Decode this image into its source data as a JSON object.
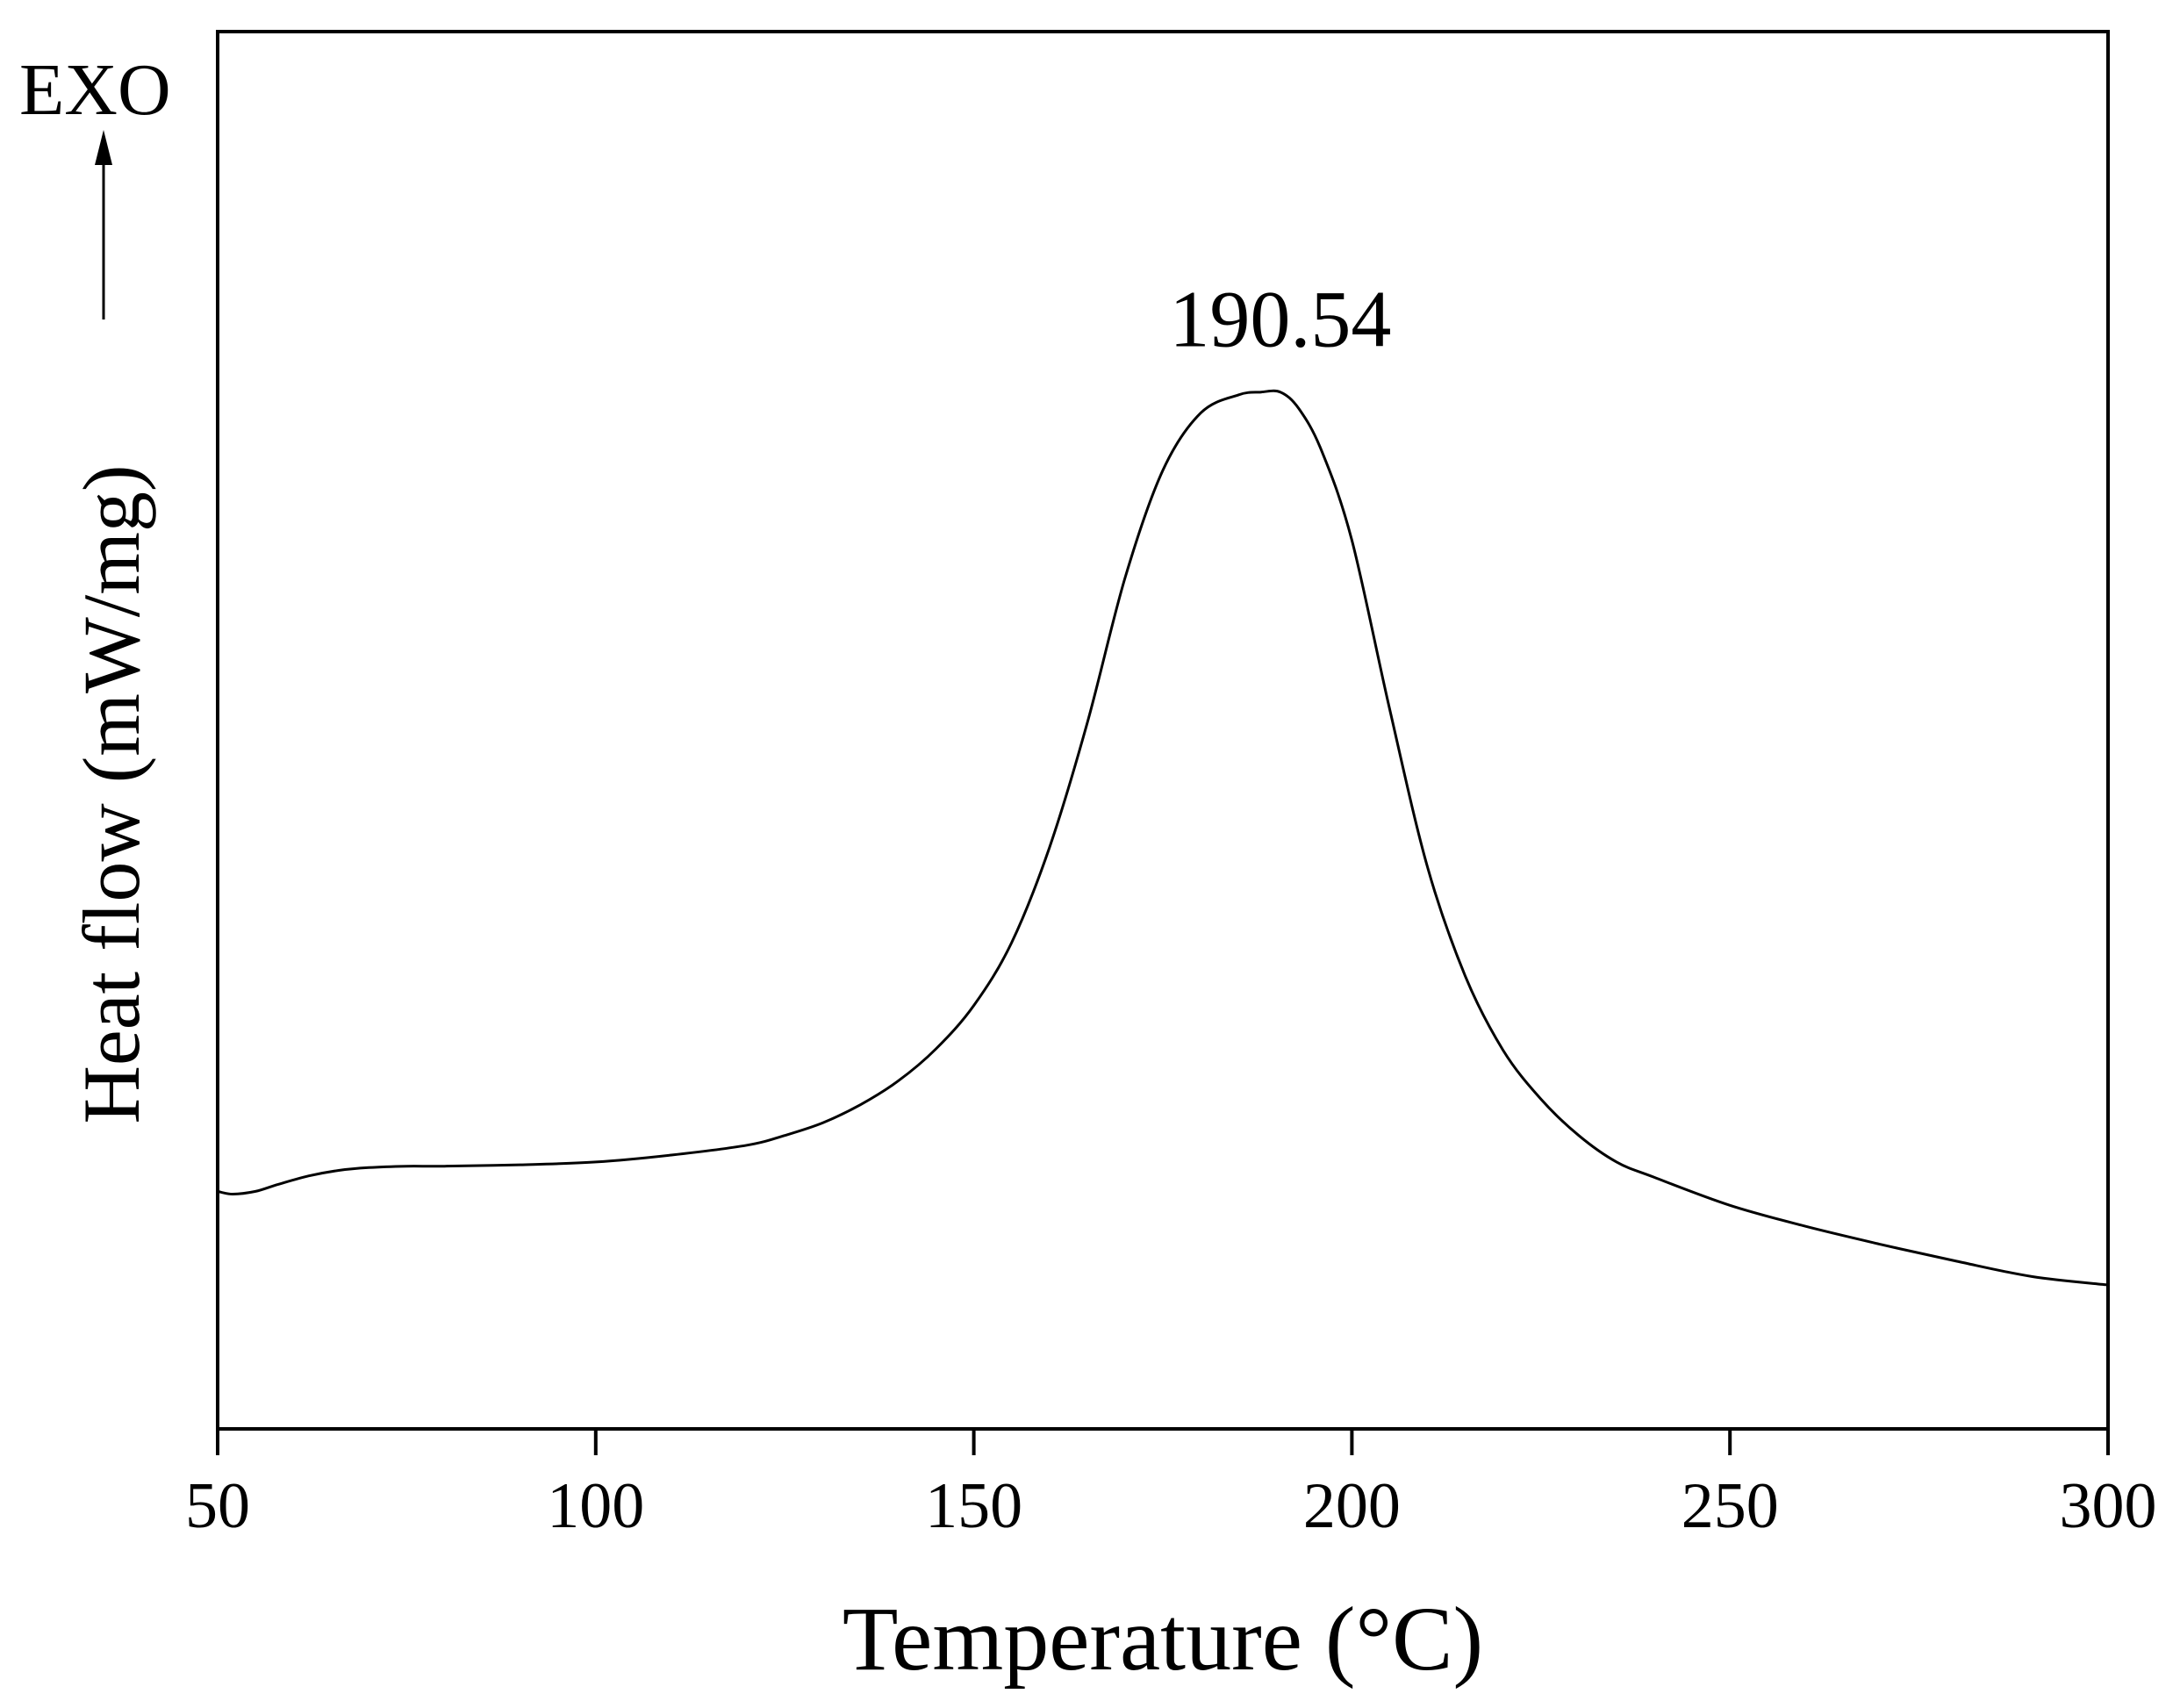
{
  "chart_data": {
    "type": "line",
    "xlabel": "Temperature (°C)",
    "ylabel": "Heat flow (mW/mg)",
    "exo_label": "EXO",
    "xlim": [
      50,
      300
    ],
    "ylim": [
      0,
      100
    ],
    "xticks": [
      50,
      100,
      150,
      200,
      250,
      300
    ],
    "xtick_labels": [
      "50",
      "100",
      "150",
      "200",
      "250",
      "300"
    ],
    "yticks_shown": false,
    "grid": false,
    "peak_annotation": {
      "x": 190.54,
      "y": 74.2,
      "label": "190.54"
    },
    "series": [
      {
        "x": [
          50,
          52,
          55,
          58,
          62,
          66,
          70,
          75,
          80,
          90,
          100,
          110,
          120,
          125,
          130,
          135,
          140,
          145,
          150,
          155,
          160,
          165,
          170,
          175,
          180,
          185,
          188,
          190.54,
          193,
          196,
          200,
          205,
          210,
          215,
          220,
          225,
          230,
          235,
          240,
          250,
          260,
          270,
          280,
          290,
          300
        ],
        "y": [
          17.0,
          16.8,
          17.0,
          17.5,
          18.1,
          18.5,
          18.7,
          18.8,
          18.8,
          18.9,
          19.1,
          19.6,
          20.3,
          21.0,
          21.9,
          23.2,
          24.9,
          27.2,
          30.3,
          34.8,
          41.6,
          50.5,
          60.9,
          68.6,
          72.7,
          74.0,
          74.2,
          74.2,
          73.0,
          70.0,
          63.6,
          51.5,
          40.2,
          32.4,
          27.1,
          23.6,
          21.0,
          19.1,
          18.0,
          16.0,
          14.5,
          13.2,
          12.0,
          10.9,
          10.3
        ]
      }
    ]
  }
}
